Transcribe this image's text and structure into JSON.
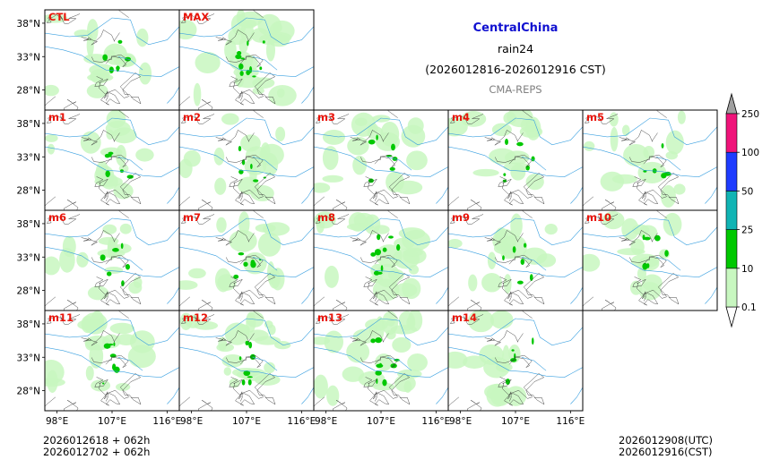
{
  "title": {
    "region": "CentralChina",
    "variable": "rain24",
    "period": "(2026012816-2026012916 CST)",
    "model": "CMA-REPS"
  },
  "footer": {
    "init_utc": "2026012618  +  062h",
    "init_cst": "2026012702  +  062h",
    "valid_utc": "2026012908(UTC)",
    "valid_cst": "2026012916(CST)"
  },
  "colors": {
    "land": "#ffffff",
    "rain_0_1": "#c8f7c0",
    "rain_10": "#00c800",
    "rain_25": "#11b4b4",
    "rain_50": "#1e3cff",
    "rain_100": "#f0147a",
    "rain_250": "#a0a0a0",
    "label": "#e8140a",
    "border": "#333333",
    "river": "#3aa0e0"
  },
  "chart_data": {
    "type": "heatmap",
    "title": "CentralChina rain24 (2026012816-2026012916 CST) CMA-REPS",
    "x_ticks": [
      "98°E",
      "107°E",
      "116°E"
    ],
    "y_ticks": [
      "38°N",
      "33°N",
      "28°N"
    ],
    "xlim": [
      96,
      118
    ],
    "ylim": [
      25,
      40
    ],
    "colorbar": {
      "levels": [
        "0.1",
        "10",
        "25",
        "50",
        "100",
        "250"
      ],
      "colors": [
        "#c8f7c0",
        "#00c800",
        "#11b4b4",
        "#1e3cff",
        "#f0147a"
      ],
      "extend": "both"
    },
    "panels": [
      {
        "label": "CTL",
        "intensity": 0.9
      },
      {
        "label": "MAX",
        "intensity": 1.6
      },
      {
        "label": "m1",
        "intensity": 0.9
      },
      {
        "label": "m2",
        "intensity": 0.85
      },
      {
        "label": "m3",
        "intensity": 1.0
      },
      {
        "label": "m4",
        "intensity": 0.8
      },
      {
        "label": "m5",
        "intensity": 0.75
      },
      {
        "label": "m6",
        "intensity": 0.85
      },
      {
        "label": "m7",
        "intensity": 0.8
      },
      {
        "label": "m8",
        "intensity": 1.3
      },
      {
        "label": "m9",
        "intensity": 0.8
      },
      {
        "label": "m10",
        "intensity": 0.85
      },
      {
        "label": "m11",
        "intensity": 1.0
      },
      {
        "label": "m12",
        "intensity": 1.2
      },
      {
        "label": "m13",
        "intensity": 1.4
      },
      {
        "label": "m14",
        "intensity": 0.7
      }
    ]
  }
}
